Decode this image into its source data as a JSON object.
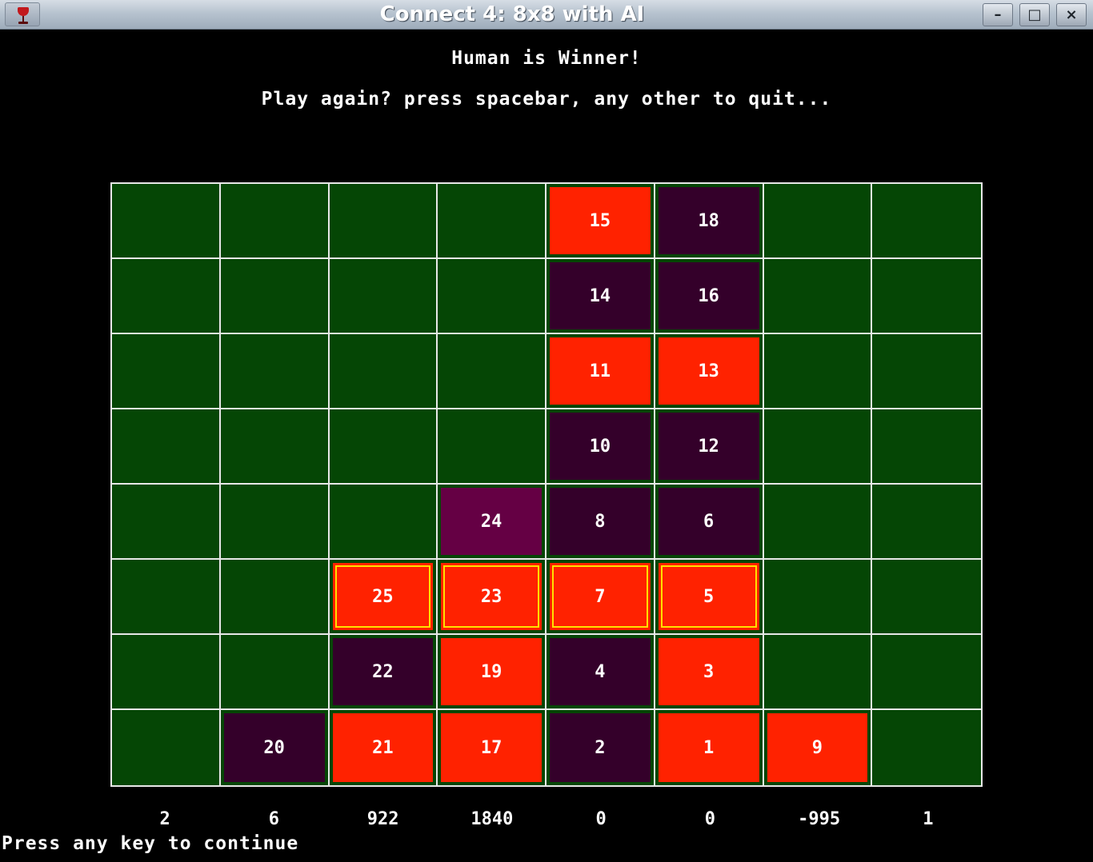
{
  "window": {
    "title": "Connect 4: 8x8 with AI",
    "buttons": {
      "minimize": "–",
      "maximize": "□",
      "close": "×"
    }
  },
  "messages": {
    "winner": "Human is Winner!",
    "play_again": "Play again? press spacebar, any other to quit..."
  },
  "colors": {
    "board": "#054605",
    "grid_lines": "#e8e8e8",
    "human_piece": "#ff2200",
    "ai_piece": "#34002a",
    "last_move_piece": "#650044",
    "win_highlight": "#ffe000"
  },
  "board": {
    "rows": [
      [
        null,
        null,
        null,
        null,
        {
          "n": "15",
          "p": "red"
        },
        {
          "n": "18",
          "p": "purple"
        },
        null,
        null
      ],
      [
        null,
        null,
        null,
        null,
        {
          "n": "14",
          "p": "purple"
        },
        {
          "n": "16",
          "p": "purple"
        },
        null,
        null
      ],
      [
        null,
        null,
        null,
        null,
        {
          "n": "11",
          "p": "red"
        },
        {
          "n": "13",
          "p": "red"
        },
        null,
        null
      ],
      [
        null,
        null,
        null,
        null,
        {
          "n": "10",
          "p": "purple"
        },
        {
          "n": "12",
          "p": "purple"
        },
        null,
        null
      ],
      [
        null,
        null,
        null,
        {
          "n": "24",
          "p": "purple",
          "last": true
        },
        {
          "n": "8",
          "p": "purple"
        },
        {
          "n": "6",
          "p": "purple"
        },
        null,
        null
      ],
      [
        null,
        null,
        {
          "n": "25",
          "p": "red",
          "win": true
        },
        {
          "n": "23",
          "p": "red",
          "win": true
        },
        {
          "n": "7",
          "p": "red",
          "win": true
        },
        {
          "n": "5",
          "p": "red",
          "win": true
        },
        null,
        null
      ],
      [
        null,
        null,
        {
          "n": "22",
          "p": "purple"
        },
        {
          "n": "19",
          "p": "red"
        },
        {
          "n": "4",
          "p": "purple"
        },
        {
          "n": "3",
          "p": "red"
        },
        null,
        null
      ],
      [
        null,
        {
          "n": "20",
          "p": "purple"
        },
        {
          "n": "21",
          "p": "red"
        },
        {
          "n": "17",
          "p": "red"
        },
        {
          "n": "2",
          "p": "purple"
        },
        {
          "n": "1",
          "p": "red"
        },
        {
          "n": "9",
          "p": "red"
        },
        null
      ]
    ]
  },
  "column_scores": [
    "2",
    "6",
    "922",
    "1840",
    "0",
    "0",
    "-995",
    "1"
  ],
  "footer": "Press any key to continue"
}
